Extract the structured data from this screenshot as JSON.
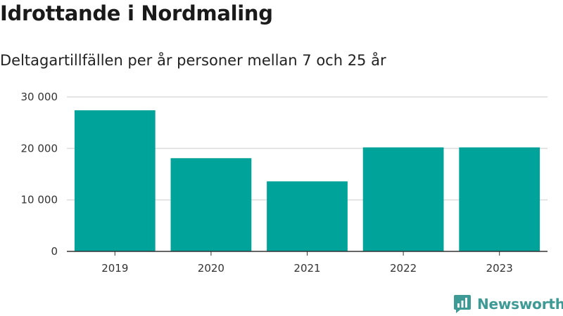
{
  "chart_data": {
    "type": "bar",
    "title": "Idrottande i Nordmaling",
    "subtitle": "Deltagartillfällen per år personer mellan 7 och 25 år",
    "categories": [
      "2019",
      "2020",
      "2021",
      "2022",
      "2023"
    ],
    "values": [
      27400,
      18100,
      13600,
      20200,
      20200
    ],
    "ylim": [
      0,
      30000
    ],
    "yticks": [
      0,
      10000,
      20000,
      30000
    ],
    "ytick_labels": [
      "0",
      "10 000",
      "20 000",
      "30 000"
    ],
    "grid": true,
    "bar_color": "#00a39a"
  },
  "branding": {
    "logo_text": "Newsworthy",
    "logo_color": "#3d9a95",
    "icon": "newsworthy-chart-icon"
  }
}
